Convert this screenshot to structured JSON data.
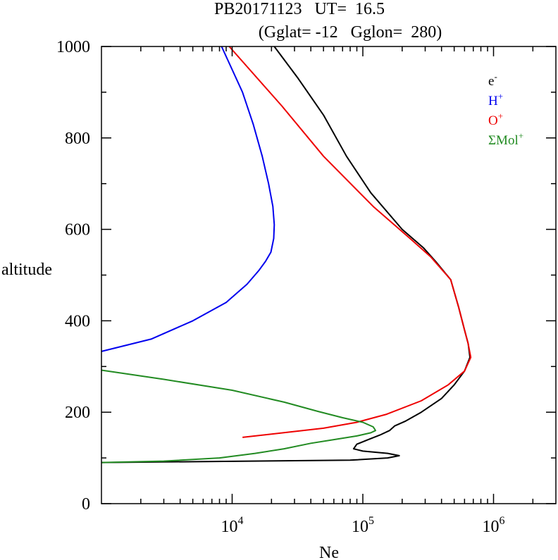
{
  "chart_data": {
    "type": "line",
    "title_line1": "PB20171123   UT=  16.5",
    "title_line2": "(Gglat= -12   Gglon=  280)",
    "xlabel": "Ne",
    "ylabel": "altitude",
    "x_scale": "log",
    "xlim": [
      1000,
      3000000
    ],
    "ylim": [
      0,
      1000
    ],
    "x_ticks": [
      {
        "value": 10000,
        "base": "10",
        "exp": "4"
      },
      {
        "value": 100000,
        "base": "10",
        "exp": "5"
      },
      {
        "value": 1000000,
        "base": "10",
        "exp": "6"
      }
    ],
    "y_ticks": [
      0,
      200,
      400,
      600,
      800,
      1000
    ],
    "grid": false,
    "legend_position": "top-right",
    "series": [
      {
        "key": "e",
        "legend_base": "e",
        "legend_sup": "-",
        "color": "#000000",
        "points": [
          [
            1000,
            90
          ],
          [
            80000,
            95
          ],
          [
            155000,
            100
          ],
          [
            190000,
            105
          ],
          [
            155000,
            110
          ],
          [
            100000,
            115
          ],
          [
            85000,
            120
          ],
          [
            90000,
            130
          ],
          [
            110000,
            140
          ],
          [
            135000,
            150
          ],
          [
            160000,
            160
          ],
          [
            175000,
            170
          ],
          [
            210000,
            180
          ],
          [
            280000,
            200
          ],
          [
            400000,
            230
          ],
          [
            500000,
            260
          ],
          [
            600000,
            290
          ],
          [
            660000,
            320
          ],
          [
            640000,
            350
          ],
          [
            600000,
            380
          ],
          [
            540000,
            430
          ],
          [
            470000,
            490
          ],
          [
            360000,
            530
          ],
          [
            290000,
            560
          ],
          [
            200000,
            600
          ],
          [
            115000,
            680
          ],
          [
            75000,
            760
          ],
          [
            50000,
            850
          ],
          [
            32000,
            930
          ],
          [
            21000,
            1000
          ]
        ]
      },
      {
        "key": "h",
        "legend_base": "H",
        "legend_sup": "+",
        "color": "#0000ee",
        "points": [
          [
            1000,
            333
          ],
          [
            2400,
            360
          ],
          [
            5000,
            400
          ],
          [
            9000,
            440
          ],
          [
            13000,
            480
          ],
          [
            16000,
            510
          ],
          [
            18000,
            530
          ],
          [
            19800,
            550
          ],
          [
            20800,
            580
          ],
          [
            21000,
            610
          ],
          [
            20500,
            650
          ],
          [
            19000,
            700
          ],
          [
            17000,
            760
          ],
          [
            14500,
            830
          ],
          [
            12000,
            900
          ],
          [
            8300,
            1000
          ]
        ]
      },
      {
        "key": "o",
        "legend_base": "O",
        "legend_sup": "+",
        "color": "#ee0000",
        "points": [
          [
            12000,
            145
          ],
          [
            50000,
            165
          ],
          [
            90000,
            178
          ],
          [
            150000,
            195
          ],
          [
            280000,
            225
          ],
          [
            450000,
            260
          ],
          [
            600000,
            290
          ],
          [
            670000,
            320
          ],
          [
            640000,
            350
          ],
          [
            600000,
            380
          ],
          [
            540000,
            430
          ],
          [
            470000,
            490
          ],
          [
            330000,
            540
          ],
          [
            230000,
            580
          ],
          [
            120000,
            650
          ],
          [
            50000,
            760
          ],
          [
            24000,
            870
          ],
          [
            9500,
            1000
          ]
        ]
      },
      {
        "key": "mol",
        "legend_base": "ΣMol",
        "legend_sup": "+",
        "color": "#228b22",
        "points": [
          [
            1000,
            292
          ],
          [
            3000,
            272
          ],
          [
            10000,
            248
          ],
          [
            25000,
            222
          ],
          [
            45000,
            202
          ],
          [
            70000,
            188
          ],
          [
            100000,
            178
          ],
          [
            120000,
            168
          ],
          [
            125000,
            160
          ],
          [
            115000,
            155
          ],
          [
            90000,
            148
          ],
          [
            60000,
            140
          ],
          [
            40000,
            132
          ],
          [
            25000,
            120
          ],
          [
            15000,
            110
          ],
          [
            8000,
            100
          ],
          [
            3000,
            93
          ],
          [
            1000,
            90
          ]
        ]
      }
    ]
  }
}
